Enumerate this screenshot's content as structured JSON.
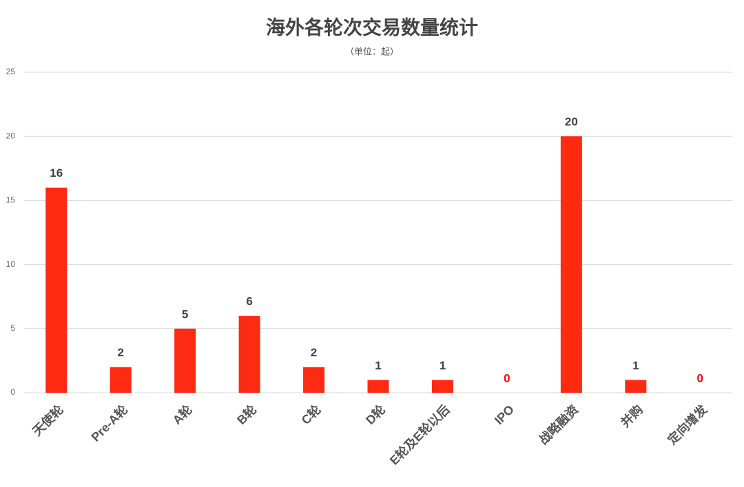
{
  "chart_data": {
    "type": "bar",
    "title": "海外各轮次交易数量统计",
    "subtitle": "（单位：起）",
    "categories": [
      "天使轮",
      "Pre-A轮",
      "A轮",
      "B轮",
      "C轮",
      "D轮",
      "E轮及E轮以后",
      "IPO",
      "战略融资",
      "并购",
      "定向增发"
    ],
    "values": [
      16,
      2,
      5,
      6,
      2,
      1,
      1,
      0,
      20,
      1,
      0
    ],
    "color": "#ff2a12",
    "value_label_color": "#404040",
    "zero_value_label_color": "#ff0000",
    "ylim": [
      0,
      25
    ],
    "yticks": [
      0,
      5,
      10,
      15,
      20,
      25
    ],
    "grid": true
  }
}
